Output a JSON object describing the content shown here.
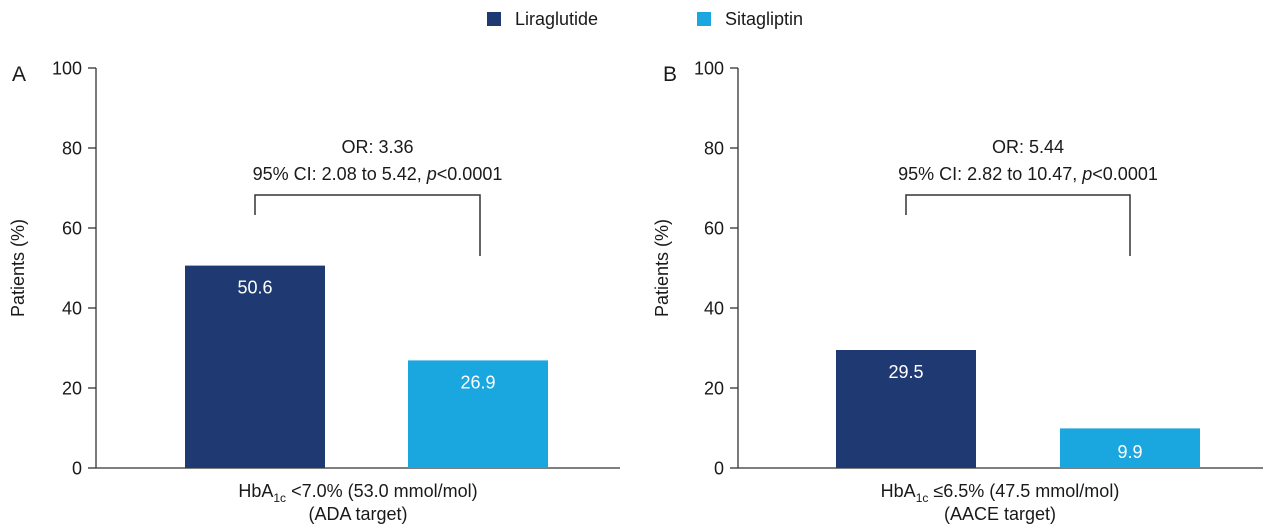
{
  "legend": [
    {
      "label": "Liraglutide",
      "color": "#1f3a73"
    },
    {
      "label": "Sitagliptin",
      "color": "#1aa6de"
    }
  ],
  "chart_data": [
    {
      "type": "bar",
      "panel_label": "A",
      "ylabel": "Patients (%)",
      "ylim": [
        0,
        100
      ],
      "yticks": [
        0,
        20,
        40,
        60,
        80,
        100
      ],
      "xlabel_parts": {
        "prefix": "HbA",
        "subscript": "1c",
        "suffix": " <7.0% (53.0 mmol/mol)"
      },
      "xlabel_line2": "(ADA target)",
      "annotation": {
        "line1": "OR: 3.36",
        "line2_prefix": "95% CI: 2.08 to 5.42, ",
        "p_symbol": "p",
        "p_value": "<0.0001"
      },
      "legend_position": "top-center",
      "grid": false,
      "series": [
        {
          "name": "Liraglutide",
          "values": [
            50.6
          ],
          "labels": [
            "50.6"
          ]
        },
        {
          "name": "Sitagliptin",
          "values": [
            26.9
          ],
          "labels": [
            "26.9"
          ]
        }
      ]
    },
    {
      "type": "bar",
      "panel_label": "B",
      "ylabel": "Patients (%)",
      "ylim": [
        0,
        100
      ],
      "yticks": [
        0,
        20,
        40,
        60,
        80,
        100
      ],
      "xlabel_parts": {
        "prefix": "HbA",
        "subscript": "1c",
        "suffix": " ≤6.5% (47.5 mmol/mol)"
      },
      "xlabel_line2": "(AACE target)",
      "annotation": {
        "line1": "OR: 5.44",
        "line2_prefix": "95% CI: 2.82 to 10.47, ",
        "p_symbol": "p",
        "p_value": "<0.0001"
      },
      "legend_position": "top-center",
      "grid": false,
      "series": [
        {
          "name": "Liraglutide",
          "values": [
            29.5
          ],
          "labels": [
            "29.5"
          ]
        },
        {
          "name": "Sitagliptin",
          "values": [
            9.9
          ],
          "labels": [
            "9.9"
          ]
        }
      ]
    }
  ]
}
